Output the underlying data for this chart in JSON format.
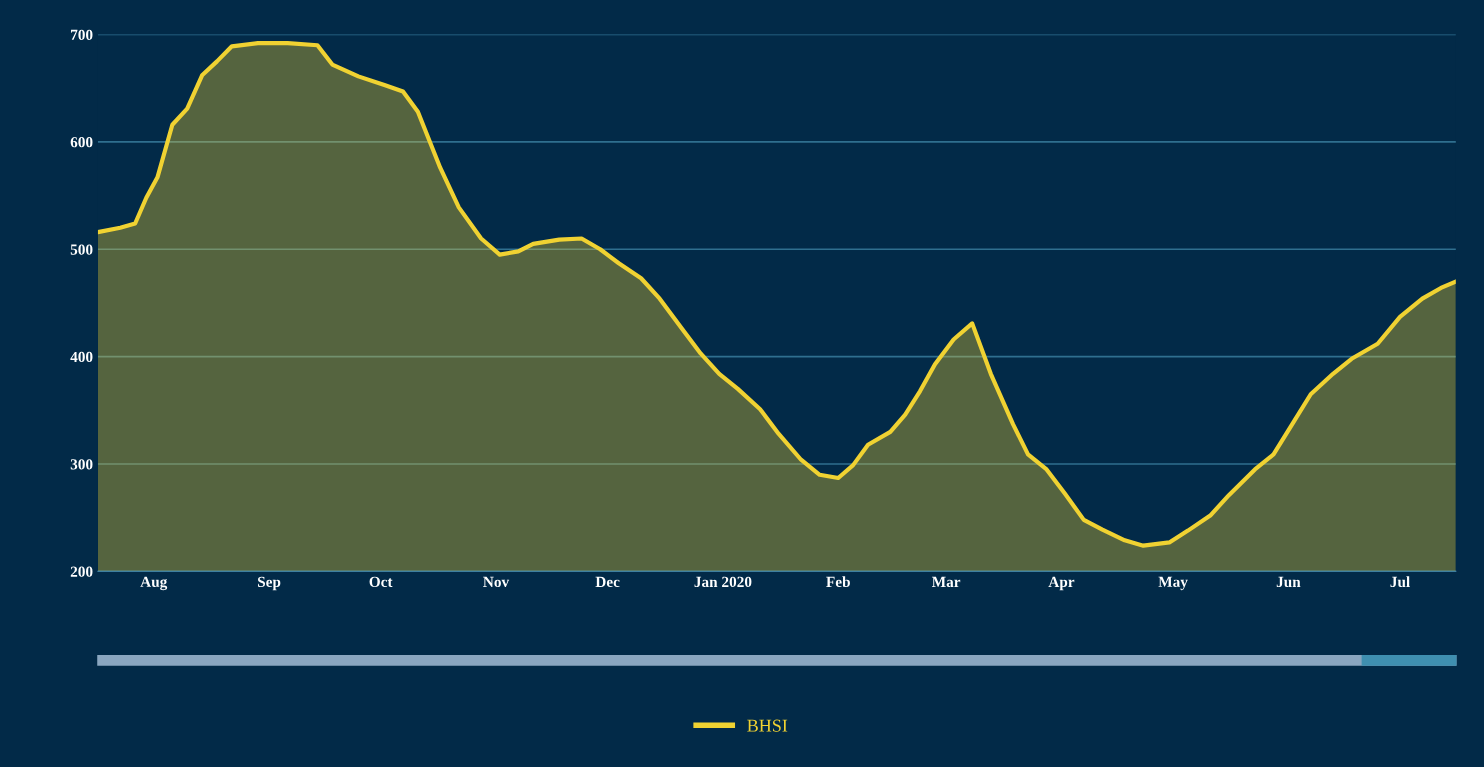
{
  "chart_data": {
    "type": "area",
    "x": [
      "2019-07-17",
      "2019-07-23",
      "2019-07-27",
      "2019-07-30",
      "2019-08-02",
      "2019-08-06",
      "2019-08-10",
      "2019-08-14",
      "2019-08-18",
      "2019-08-22",
      "2019-08-29",
      "2019-09-06",
      "2019-09-14",
      "2019-09-18",
      "2019-09-25",
      "2019-10-02",
      "2019-10-07",
      "2019-10-11",
      "2019-10-17",
      "2019-10-22",
      "2019-10-28",
      "2019-11-02",
      "2019-11-07",
      "2019-11-11",
      "2019-11-18",
      "2019-11-24",
      "2019-11-29",
      "2019-12-04",
      "2019-12-10",
      "2019-12-15",
      "2019-12-21",
      "2019-12-26",
      "2019-12-31",
      "2020-01-05",
      "2020-01-11",
      "2020-01-16",
      "2020-01-22",
      "2020-01-27",
      "2020-02-01",
      "2020-02-05",
      "2020-02-09",
      "2020-02-15",
      "2020-02-19",
      "2020-02-23",
      "2020-02-27",
      "2020-03-03",
      "2020-03-08",
      "2020-03-13",
      "2020-03-19",
      "2020-03-23",
      "2020-03-28",
      "2020-04-02",
      "2020-04-07",
      "2020-04-12",
      "2020-04-18",
      "2020-04-23",
      "2020-04-30",
      "2020-05-05",
      "2020-05-11",
      "2020-05-16",
      "2020-05-23",
      "2020-05-28",
      "2020-06-02",
      "2020-06-07",
      "2020-06-13",
      "2020-06-18",
      "2020-06-25",
      "2020-07-01",
      "2020-07-07",
      "2020-07-12",
      "2020-07-16"
    ],
    "series": [
      {
        "name": "BHSI",
        "color": "#f0d232",
        "values": [
          516,
          520,
          524,
          548,
          567,
          616,
          631,
          662,
          675,
          689,
          692,
          692,
          690,
          672,
          661,
          653,
          647,
          628,
          576,
          539,
          510,
          495,
          498,
          505,
          509,
          510,
          500,
          487,
          473,
          454,
          426,
          403,
          384,
          370,
          351,
          328,
          304,
          290,
          287,
          299,
          318,
          330,
          346,
          368,
          393,
          416,
          431,
          384,
          337,
          309,
          295,
          272,
          248,
          239,
          229,
          224,
          227,
          238,
          252,
          271,
          295,
          309,
          337,
          365,
          384,
          398,
          412,
          437,
          454,
          464,
          470
        ]
      }
    ],
    "xlim": [
      "2019-07-17",
      "2020-07-16"
    ],
    "xticks": [
      {
        "value": "2019-08-01",
        "label": "Aug"
      },
      {
        "value": "2019-09-01",
        "label": "Sep"
      },
      {
        "value": "2019-10-01",
        "label": "Oct"
      },
      {
        "value": "2019-11-01",
        "label": "Nov"
      },
      {
        "value": "2019-12-01",
        "label": "Dec"
      },
      {
        "value": "2020-01-01",
        "label": "Jan 2020"
      },
      {
        "value": "2020-02-01",
        "label": "Feb"
      },
      {
        "value": "2020-03-01",
        "label": "Mar"
      },
      {
        "value": "2020-04-01",
        "label": "Apr"
      },
      {
        "value": "2020-05-01",
        "label": "May"
      },
      {
        "value": "2020-06-01",
        "label": "Jun"
      },
      {
        "value": "2020-07-01",
        "label": "Jul"
      }
    ],
    "ylim": [
      200,
      700
    ],
    "yticks": [
      200,
      300,
      400,
      500,
      600,
      700
    ],
    "grid": "y",
    "legend": "bottom",
    "marker": "none",
    "line_style": "solid"
  }
}
